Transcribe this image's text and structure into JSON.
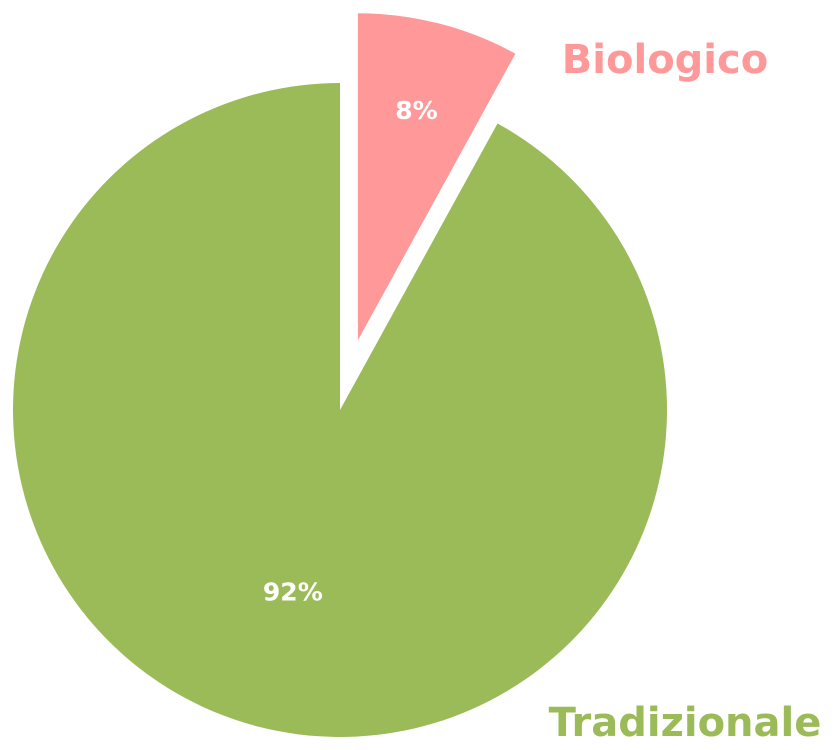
{
  "chart_data": {
    "type": "pie",
    "categories": [
      "Biologico",
      "Tradizionale"
    ],
    "values": [
      8,
      92
    ],
    "value_labels": [
      "8%",
      "92%"
    ],
    "colors": [
      "#ff9999",
      "#9bbb59"
    ],
    "exploded": [
      true,
      false
    ]
  }
}
